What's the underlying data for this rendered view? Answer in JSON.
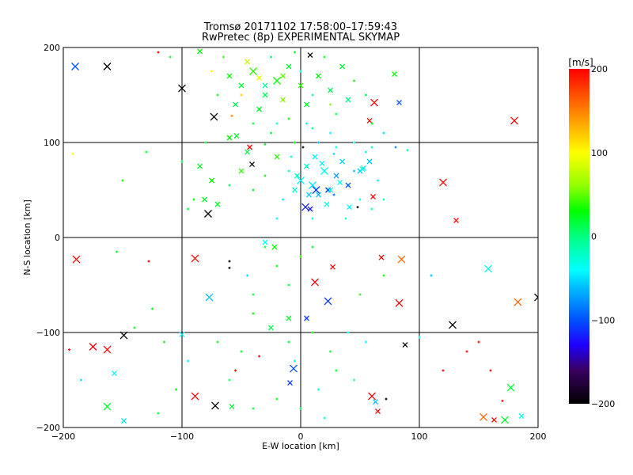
{
  "chart_data": {
    "type": "scatter",
    "title": "Tromsø 20171102 17:58:00–17:59:43",
    "subtitle": "RwPretec (8p) EXPERIMENTAL SKYMAP",
    "xlabel": "E-W location [km]",
    "ylabel": "N-S location [km]",
    "xlim": [
      -200,
      200
    ],
    "ylim": [
      -200,
      200
    ],
    "xticks": [
      "-200",
      "-100",
      "0",
      "100",
      "200"
    ],
    "yticks": [
      "-200",
      "-100",
      "0",
      "100",
      "200"
    ],
    "grid": true,
    "colorbar": {
      "label": "[m/s]",
      "range": [
        -200,
        200
      ],
      "ticks": [
        "200",
        "100",
        "0",
        "-100",
        "-200"
      ],
      "stops": [
        [
          -200,
          "#000000"
        ],
        [
          -160,
          "#3a0060"
        ],
        [
          -130,
          "#2000ff"
        ],
        [
          -100,
          "#0050ff"
        ],
        [
          -60,
          "#00c0ff"
        ],
        [
          -40,
          "#00ffff"
        ],
        [
          0,
          "#00ff80"
        ],
        [
          30,
          "#00ff00"
        ],
        [
          60,
          "#90ff00"
        ],
        [
          100,
          "#ffff00"
        ],
        [
          150,
          "#ff8000"
        ],
        [
          200,
          "#ff0000"
        ]
      ]
    },
    "point_format": [
      "x_km",
      "y_km",
      "velocity_m_s",
      "marker_size_class"
    ],
    "points": [
      [
        -190,
        180,
        -100,
        3
      ],
      [
        -163,
        180,
        -200,
        3
      ],
      [
        -100,
        157,
        -200,
        3
      ],
      [
        -73,
        127,
        -200,
        3
      ],
      [
        -78,
        25,
        -200,
        3
      ],
      [
        -189,
        -23,
        200,
        3
      ],
      [
        -89,
        -22,
        200,
        3
      ],
      [
        -77,
        -63,
        -60,
        3
      ],
      [
        -149,
        -103,
        -200,
        3
      ],
      [
        -175,
        -115,
        200,
        3
      ],
      [
        -163,
        -118,
        200,
        3
      ],
      [
        -157,
        -143,
        -40,
        2
      ],
      [
        -163,
        -178,
        20,
        3
      ],
      [
        -149,
        -193,
        -50,
        2
      ],
      [
        -89,
        -167,
        200,
        3
      ],
      [
        -72,
        -177,
        -200,
        3
      ],
      [
        -58,
        -178,
        20,
        2
      ],
      [
        -6,
        -138,
        -100,
        3
      ],
      [
        -9,
        -153,
        -110,
        2
      ],
      [
        5,
        -85,
        -110,
        2
      ],
      [
        12,
        -47,
        200,
        3
      ],
      [
        23,
        -67,
        -110,
        3
      ],
      [
        27,
        -31,
        200,
        2
      ],
      [
        68,
        -21,
        200,
        2
      ],
      [
        85,
        -23,
        160,
        3
      ],
      [
        83,
        -69,
        200,
        3
      ],
      [
        128,
        -92,
        -200,
        3
      ],
      [
        88,
        -113,
        -200,
        2
      ],
      [
        60,
        -167,
        200,
        3
      ],
      [
        63,
        -173,
        -60,
        2
      ],
      [
        72,
        -170,
        -200,
        1
      ],
      [
        65,
        -183,
        200,
        2
      ],
      [
        120,
        58,
        200,
        3
      ],
      [
        131,
        18,
        200,
        2
      ],
      [
        180,
        123,
        200,
        3
      ],
      [
        183,
        -68,
        160,
        3
      ],
      [
        200,
        -63,
        -200,
        3
      ],
      [
        158,
        -33,
        -30,
        3
      ],
      [
        154,
        -189,
        160,
        3
      ],
      [
        163,
        -192,
        200,
        2
      ],
      [
        172,
        -192,
        20,
        3
      ],
      [
        186,
        -188,
        -40,
        2
      ],
      [
        177,
        -158,
        20,
        3
      ],
      [
        8,
        192,
        -200,
        2
      ],
      [
        62,
        142,
        200,
        3
      ],
      [
        83,
        142,
        -100,
        2
      ],
      [
        79,
        172,
        30,
        2
      ],
      [
        58,
        123,
        200,
        2
      ],
      [
        53,
        73,
        -40,
        2
      ],
      [
        61,
        43,
        200,
        2
      ],
      [
        41,
        32,
        -40,
        2
      ],
      [
        4,
        32,
        -120,
        3
      ],
      [
        13,
        50,
        -110,
        3
      ],
      [
        23,
        50,
        -110,
        2
      ],
      [
        -43,
        95,
        200,
        2
      ],
      [
        -41,
        77,
        -200,
        2
      ],
      [
        -54,
        107,
        20,
        2
      ],
      [
        -81,
        40,
        20,
        2
      ],
      [
        -70,
        35,
        20,
        2
      ],
      [
        -60,
        -25,
        -200,
        1
      ],
      [
        -60,
        -32,
        -200,
        1
      ],
      [
        -60,
        170,
        30,
        2
      ],
      [
        -50,
        160,
        20,
        2
      ],
      [
        -40,
        175,
        40,
        3
      ],
      [
        -30,
        150,
        10,
        2
      ],
      [
        -20,
        165,
        30,
        3
      ],
      [
        -10,
        180,
        20,
        2
      ],
      [
        0,
        160,
        40,
        2
      ],
      [
        -35,
        135,
        20,
        2
      ],
      [
        -55,
        140,
        10,
        2
      ],
      [
        -15,
        145,
        60,
        2
      ],
      [
        5,
        140,
        20,
        2
      ],
      [
        15,
        170,
        30,
        2
      ],
      [
        25,
        155,
        10,
        2
      ],
      [
        35,
        180,
        20,
        2
      ],
      [
        40,
        145,
        0,
        2
      ],
      [
        -45,
        185,
        80,
        2
      ],
      [
        -25,
        190,
        10,
        1
      ],
      [
        -5,
        195,
        20,
        1
      ],
      [
        -70,
        150,
        30,
        1
      ],
      [
        -65,
        190,
        40,
        1
      ],
      [
        20,
        190,
        20,
        1
      ],
      [
        30,
        130,
        10,
        1
      ],
      [
        -10,
        125,
        30,
        1
      ],
      [
        -40,
        120,
        20,
        1
      ],
      [
        10,
        115,
        0,
        1
      ],
      [
        -25,
        110,
        20,
        1
      ],
      [
        45,
        165,
        30,
        1
      ],
      [
        55,
        150,
        10,
        1
      ],
      [
        -75,
        175,
        100,
        1
      ],
      [
        -58,
        128,
        150,
        1
      ],
      [
        -30,
        160,
        -10,
        2
      ],
      [
        0,
        175,
        -30,
        1
      ],
      [
        -15,
        170,
        50,
        2
      ],
      [
        -50,
        150,
        120,
        1
      ],
      [
        -35,
        168,
        90,
        2
      ],
      [
        25,
        140,
        60,
        1
      ],
      [
        60,
        120,
        30,
        1
      ],
      [
        -80,
        100,
        20,
        1
      ],
      [
        -60,
        105,
        30,
        2
      ],
      [
        -45,
        90,
        10,
        2
      ],
      [
        -30,
        98,
        20,
        1
      ],
      [
        -20,
        85,
        40,
        2
      ],
      [
        -5,
        100,
        30,
        1
      ],
      [
        -85,
        75,
        20,
        2
      ],
      [
        -75,
        60,
        30,
        2
      ],
      [
        -60,
        55,
        10,
        1
      ],
      [
        -50,
        70,
        40,
        2
      ],
      [
        -40,
        50,
        20,
        1
      ],
      [
        -30,
        65,
        30,
        1
      ],
      [
        -90,
        40,
        30,
        1
      ],
      [
        -100,
        80,
        10,
        1
      ],
      [
        -130,
        90,
        20,
        1
      ],
      [
        -150,
        60,
        30,
        1
      ],
      [
        -95,
        30,
        10,
        1
      ],
      [
        -192,
        88,
        100,
        1
      ],
      [
        -120,
        195,
        200,
        1
      ],
      [
        -110,
        190,
        20,
        1
      ],
      [
        -85,
        196,
        30,
        2
      ],
      [
        -20,
        120,
        -20,
        1
      ],
      [
        10,
        150,
        -10,
        1
      ],
      [
        0,
        60,
        -40,
        3
      ],
      [
        10,
        55,
        -50,
        3
      ],
      [
        20,
        70,
        -30,
        3
      ],
      [
        15,
        45,
        -60,
        2
      ],
      [
        5,
        75,
        -20,
        2
      ],
      [
        25,
        50,
        -40,
        2
      ],
      [
        30,
        65,
        -70,
        2
      ],
      [
        -5,
        50,
        -30,
        2
      ],
      [
        35,
        80,
        -50,
        2
      ],
      [
        12,
        85,
        -40,
        2
      ],
      [
        22,
        35,
        -30,
        2
      ],
      [
        40,
        55,
        -100,
        2
      ],
      [
        45,
        70,
        -60,
        1
      ],
      [
        50,
        40,
        -40,
        1
      ],
      [
        55,
        90,
        -30,
        1
      ],
      [
        8,
        30,
        -120,
        2
      ],
      [
        28,
        45,
        -90,
        1
      ],
      [
        -10,
        70,
        -20,
        1
      ],
      [
        -15,
        40,
        -30,
        1
      ],
      [
        2,
        95,
        -200,
        1
      ],
      [
        15,
        100,
        -60,
        1
      ],
      [
        30,
        95,
        -30,
        1
      ],
      [
        45,
        100,
        -40,
        1
      ],
      [
        60,
        95,
        -20,
        1
      ],
      [
        70,
        110,
        -50,
        1
      ],
      [
        80,
        95,
        -80,
        1
      ],
      [
        90,
        92,
        -10,
        1
      ],
      [
        65,
        60,
        -30,
        1
      ],
      [
        70,
        40,
        -20,
        1
      ],
      [
        60,
        30,
        -30,
        1
      ],
      [
        48,
        32,
        -200,
        1
      ],
      [
        38,
        20,
        -30,
        1
      ],
      [
        10,
        20,
        -40,
        1
      ],
      [
        -20,
        20,
        -30,
        1
      ],
      [
        50,
        70,
        -60,
        2
      ],
      [
        52,
        72,
        -30,
        2
      ],
      [
        58,
        80,
        -60,
        2
      ],
      [
        25,
        110,
        -40,
        1
      ],
      [
        5,
        120,
        -30,
        1
      ],
      [
        -3,
        65,
        -20,
        2
      ],
      [
        18,
        78,
        -45,
        2
      ],
      [
        33,
        58,
        -35,
        2
      ],
      [
        7,
        45,
        -55,
        2
      ],
      [
        -8,
        85,
        -25,
        1
      ],
      [
        28,
        88,
        -55,
        1
      ],
      [
        -30,
        -10,
        20,
        1
      ],
      [
        -20,
        -30,
        30,
        1
      ],
      [
        -10,
        -50,
        10,
        1
      ],
      [
        0,
        -20,
        40,
        1
      ],
      [
        10,
        -10,
        20,
        1
      ],
      [
        -40,
        -80,
        30,
        1
      ],
      [
        -25,
        -95,
        10,
        2
      ],
      [
        -10,
        -110,
        20,
        1
      ],
      [
        10,
        -100,
        30,
        1
      ],
      [
        25,
        -120,
        10,
        1
      ],
      [
        40,
        -100,
        -30,
        1
      ],
      [
        55,
        -110,
        -40,
        1
      ],
      [
        30,
        -140,
        20,
        1
      ],
      [
        -5,
        -130,
        -20,
        1
      ],
      [
        -50,
        -120,
        20,
        1
      ],
      [
        -70,
        -110,
        30,
        1
      ],
      [
        -60,
        -150,
        10,
        1
      ],
      [
        15,
        -160,
        -30,
        1
      ],
      [
        45,
        -150,
        -20,
        1
      ],
      [
        -20,
        -170,
        30,
        1
      ],
      [
        -40,
        -60,
        20,
        1
      ],
      [
        50,
        -60,
        40,
        1
      ],
      [
        70,
        -40,
        30,
        1
      ],
      [
        -55,
        -140,
        200,
        1
      ],
      [
        -40,
        -180,
        20,
        1
      ],
      [
        0,
        -180,
        10,
        1
      ],
      [
        20,
        -190,
        -30,
        1
      ],
      [
        -100,
        -102,
        -40,
        2
      ],
      [
        -115,
        -110,
        30,
        1
      ],
      [
        -140,
        -95,
        20,
        1
      ],
      [
        -155,
        -15,
        20,
        1
      ],
      [
        -128,
        -25,
        200,
        1
      ],
      [
        -125,
        -75,
        30,
        1
      ],
      [
        -95,
        -130,
        -40,
        1
      ],
      [
        -105,
        -160,
        30,
        1
      ],
      [
        -120,
        -185,
        20,
        1
      ],
      [
        -195,
        -118,
        200,
        1
      ],
      [
        -185,
        -150,
        -50,
        1
      ],
      [
        110,
        -40,
        -60,
        1
      ],
      [
        140,
        -120,
        200,
        1
      ],
      [
        150,
        -110,
        200,
        1
      ],
      [
        160,
        -140,
        200,
        1
      ],
      [
        170,
        -172,
        200,
        1
      ],
      [
        120,
        -140,
        200,
        1
      ],
      [
        100,
        -105,
        -30,
        1
      ],
      [
        -30,
        -5,
        -40,
        2
      ],
      [
        -22,
        -10,
        30,
        2
      ],
      [
        -45,
        -40,
        -50,
        1
      ],
      [
        -35,
        -125,
        200,
        1
      ],
      [
        -10,
        -85,
        20,
        2
      ]
    ]
  }
}
